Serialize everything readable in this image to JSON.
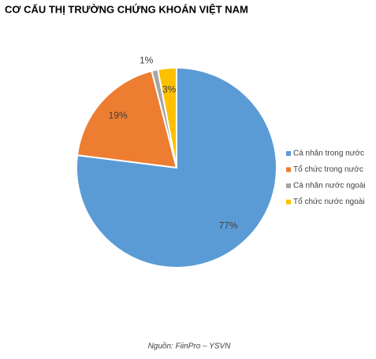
{
  "chart_data": {
    "type": "pie",
    "title": "CƠ CẤU THỊ TRƯỜNG CHỨNG KHOÁN VIỆT NAM",
    "categories": [
      "Cá nhân trong nước",
      "Tổ chức trong nước",
      "Cá nhân nước ngoài",
      "Tổ chức nước ngoài"
    ],
    "values": [
      77,
      19,
      1,
      3
    ],
    "value_labels": [
      "77%",
      "19%",
      "1%",
      "3%"
    ],
    "colors": [
      "#5b9bd5",
      "#ed7d31",
      "#a5a5a5",
      "#ffc000"
    ],
    "legend": "right",
    "source": "Nguồn: FiinPro – YSVN"
  }
}
